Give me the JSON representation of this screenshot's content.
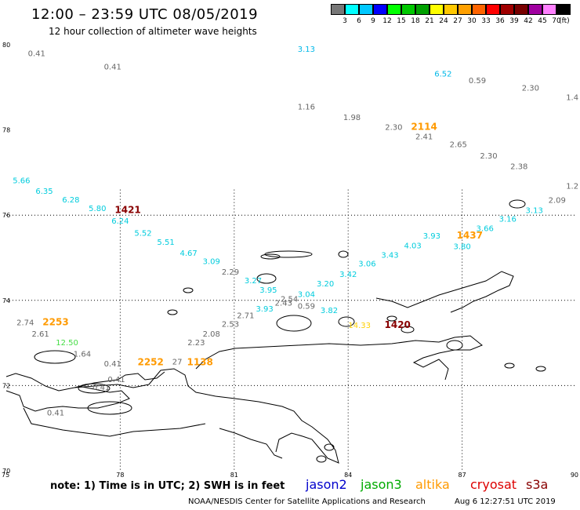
{
  "header": {
    "title": "12:00 – 23:59 UTC 08/05/2019",
    "subtitle": "12 hour collection of altimeter wave heights"
  },
  "colorbar": {
    "labels": [
      "3",
      "6",
      "9",
      "12",
      "15",
      "18",
      "21",
      "24",
      "27",
      "30",
      "33",
      "36",
      "39",
      "42",
      "45",
      "70",
      "(ft)"
    ],
    "colors": [
      "#777777",
      "#00ffff",
      "#00c8ff",
      "#0000ff",
      "#00ff00",
      "#00c800",
      "#00a000",
      "#ffff00",
      "#ffc800",
      "#ffa000",
      "#ff6400",
      "#ff0000",
      "#a00000",
      "#780000",
      "#a000a0",
      "#ff80ff",
      "#000000"
    ]
  },
  "axes": {
    "lat_labels": [
      {
        "text": "80",
        "lat": 80
      },
      {
        "text": "78",
        "lat": 78
      },
      {
        "text": "76",
        "lat": 76
      },
      {
        "text": "74",
        "lat": 74
      },
      {
        "text": "72",
        "lat": 72
      },
      {
        "text": "70",
        "lat": 70
      }
    ],
    "lon_labels": [
      {
        "text": "75",
        "lon": 75
      },
      {
        "text": "78",
        "lon": 78
      },
      {
        "text": "81",
        "lon": 81
      },
      {
        "text": "84",
        "lon": 84
      },
      {
        "text": "87",
        "lon": 87
      },
      {
        "text": "90",
        "lon": 90
      }
    ]
  },
  "map_extent": {
    "lon_min": 75,
    "lon_max": 90,
    "lat_min": 70,
    "lat_max": 80
  },
  "observations": [
    {
      "text": "0.41",
      "lon": 75.8,
      "lat": 79.73,
      "color": "#666666"
    },
    {
      "text": "0.41",
      "lon": 77.8,
      "lat": 79.42,
      "color": "#666666"
    },
    {
      "text": "3.13",
      "lon": 82.9,
      "lat": 79.83,
      "color": "#00b8e8"
    },
    {
      "text": "6.52",
      "lon": 86.5,
      "lat": 79.25,
      "color": "#00b8e8"
    },
    {
      "text": "0.59",
      "lon": 87.4,
      "lat": 79.1,
      "color": "#666666"
    },
    {
      "text": "2.30",
      "lon": 88.8,
      "lat": 78.92,
      "color": "#666666"
    },
    {
      "text": "1.4",
      "lon": 89.9,
      "lat": 78.7,
      "color": "#666666"
    },
    {
      "text": "1.16",
      "lon": 82.9,
      "lat": 78.48,
      "color": "#666666"
    },
    {
      "text": "1.98",
      "lon": 84.1,
      "lat": 78.23,
      "color": "#666666"
    },
    {
      "text": "2.30",
      "lon": 85.2,
      "lat": 78.0,
      "color": "#666666"
    },
    {
      "text": "2114",
      "lon": 86.0,
      "lat": 78.0,
      "color": "#ff9a00",
      "bold": true
    },
    {
      "text": "2.41",
      "lon": 86.0,
      "lat": 77.78,
      "color": "#666666"
    },
    {
      "text": "2.65",
      "lon": 86.9,
      "lat": 77.6,
      "color": "#666666"
    },
    {
      "text": "2.30",
      "lon": 87.7,
      "lat": 77.33,
      "color": "#666666"
    },
    {
      "text": "2.38",
      "lon": 88.5,
      "lat": 77.08,
      "color": "#666666"
    },
    {
      "text": "1.2",
      "lon": 89.9,
      "lat": 76.62,
      "color": "#666666"
    },
    {
      "text": "2.09",
      "lon": 89.5,
      "lat": 76.29,
      "color": "#666666"
    },
    {
      "text": "3.13",
      "lon": 88.9,
      "lat": 76.05,
      "color": "#00ccdd"
    },
    {
      "text": "3.16",
      "lon": 88.2,
      "lat": 75.85,
      "color": "#00ccdd"
    },
    {
      "text": "3.66",
      "lon": 87.6,
      "lat": 75.63,
      "color": "#00ccdd"
    },
    {
      "text": "3.80",
      "lon": 87.0,
      "lat": 75.2,
      "color": "#00ccdd"
    },
    {
      "text": "1437",
      "lon": 87.2,
      "lat": 75.45,
      "color": "#ff9a00",
      "bold": true
    },
    {
      "text": "3.93",
      "lon": 86.2,
      "lat": 75.45,
      "color": "#00ccdd"
    },
    {
      "text": "4.03",
      "lon": 85.7,
      "lat": 75.22,
      "color": "#00ccdd"
    },
    {
      "text": "3.43",
      "lon": 85.1,
      "lat": 75.0,
      "color": "#00ccdd"
    },
    {
      "text": "3.06",
      "lon": 84.5,
      "lat": 74.8,
      "color": "#00ccdd"
    },
    {
      "text": "3.42",
      "lon": 84.0,
      "lat": 74.55,
      "color": "#00ccdd"
    },
    {
      "text": "3.20",
      "lon": 83.4,
      "lat": 74.33,
      "color": "#00ccdd"
    },
    {
      "text": "3.04",
      "lon": 82.9,
      "lat": 74.08,
      "color": "#00ccdd"
    },
    {
      "text": "2.54",
      "lon": 82.45,
      "lat": 73.97,
      "color": "#666666"
    },
    {
      "text": "2.43",
      "lon": 82.3,
      "lat": 73.88,
      "color": "#666666"
    },
    {
      "text": "0.59",
      "lon": 82.9,
      "lat": 73.8,
      "color": "#666666"
    },
    {
      "text": "3.93",
      "lon": 81.8,
      "lat": 73.74,
      "color": "#00ccdd"
    },
    {
      "text": "3.95",
      "lon": 81.9,
      "lat": 74.18,
      "color": "#00ccdd"
    },
    {
      "text": "3.27",
      "lon": 81.5,
      "lat": 74.4,
      "color": "#00ccdd"
    },
    {
      "text": "2.29",
      "lon": 80.9,
      "lat": 74.6,
      "color": "#666666"
    },
    {
      "text": "3.09",
      "lon": 80.4,
      "lat": 74.85,
      "color": "#00ccdd"
    },
    {
      "text": "4.67",
      "lon": 79.8,
      "lat": 75.05,
      "color": "#00ccdd"
    },
    {
      "text": "5.51",
      "lon": 79.2,
      "lat": 75.3,
      "color": "#00ccdd"
    },
    {
      "text": "5.52",
      "lon": 78.6,
      "lat": 75.52,
      "color": "#00ccdd"
    },
    {
      "text": "6.24",
      "lon": 78.0,
      "lat": 75.8,
      "color": "#00ccdd"
    },
    {
      "text": "1421",
      "lon": 78.2,
      "lat": 76.05,
      "color": "#880000",
      "bold": true
    },
    {
      "text": "5.80",
      "lon": 77.4,
      "lat": 76.1,
      "color": "#00ccdd"
    },
    {
      "text": "6.28",
      "lon": 76.7,
      "lat": 76.3,
      "color": "#00ccdd"
    },
    {
      "text": "6.35",
      "lon": 76.0,
      "lat": 76.5,
      "color": "#00ccdd"
    },
    {
      "text": "5.66",
      "lon": 75.4,
      "lat": 76.75,
      "color": "#00ccdd"
    },
    {
      "text": "3.82",
      "lon": 83.5,
      "lat": 73.7,
      "color": "#00ccdd"
    },
    {
      "text": "2.71",
      "lon": 81.3,
      "lat": 73.58,
      "color": "#666666"
    },
    {
      "text": "2.53",
      "lon": 80.9,
      "lat": 73.38,
      "color": "#666666"
    },
    {
      "text": "2.08",
      "lon": 80.4,
      "lat": 73.15,
      "color": "#666666"
    },
    {
      "text": "2.23",
      "lon": 80.0,
      "lat": 72.95,
      "color": "#666666"
    },
    {
      "text": "14.33",
      "lon": 84.3,
      "lat": 73.35,
      "color": "#ffd000"
    },
    {
      "text": "1420",
      "lon": 85.3,
      "lat": 73.35,
      "color": "#880000",
      "bold": true
    },
    {
      "text": "2.74",
      "lon": 75.5,
      "lat": 73.42,
      "color": "#666666"
    },
    {
      "text": "2253",
      "lon": 76.3,
      "lat": 73.42,
      "color": "#ff9a00",
      "bold": true
    },
    {
      "text": "2.61",
      "lon": 75.9,
      "lat": 73.15,
      "color": "#666666"
    },
    {
      "text": "12.50",
      "lon": 76.6,
      "lat": 72.95,
      "color": "#44dd44"
    },
    {
      "text": "1.64",
      "lon": 77.0,
      "lat": 72.68,
      "color": "#666666"
    },
    {
      "text": "0.41",
      "lon": 77.8,
      "lat": 72.45,
      "color": "#666666"
    },
    {
      "text": "2252",
      "lon": 78.8,
      "lat": 72.48,
      "color": "#ff9a00",
      "bold": true
    },
    {
      "text": "27",
      "lon": 79.5,
      "lat": 72.5,
      "color": "#666666"
    },
    {
      "text": "1138",
      "lon": 80.1,
      "lat": 72.48,
      "color": "#ff9a00",
      "bold": true
    },
    {
      "text": "0.41",
      "lon": 77.9,
      "lat": 72.08,
      "color": "#666666"
    },
    {
      "text": "0.41",
      "lon": 77.5,
      "lat": 71.9,
      "color": "#666666"
    },
    {
      "text": "0.41",
      "lon": 76.3,
      "lat": 71.3,
      "color": "#666666"
    }
  ],
  "footer": {
    "note": "note:  1) Time is in UTC;  2) SWH is in feet",
    "satellites": [
      {
        "name": "jason2",
        "color": "#0000cc"
      },
      {
        "name": "jason3",
        "color": "#00aa00"
      },
      {
        "name": "altika",
        "color": "#ff9a00"
      },
      {
        "name": "cryosat",
        "color": "#dd0000"
      },
      {
        "name": "s3a",
        "color": "#880000"
      }
    ],
    "credit": "NOAA/NESDIS Center for Satellite Applications and Research",
    "timestamp": "Aug  6 12:27:51 UTC 2019"
  }
}
